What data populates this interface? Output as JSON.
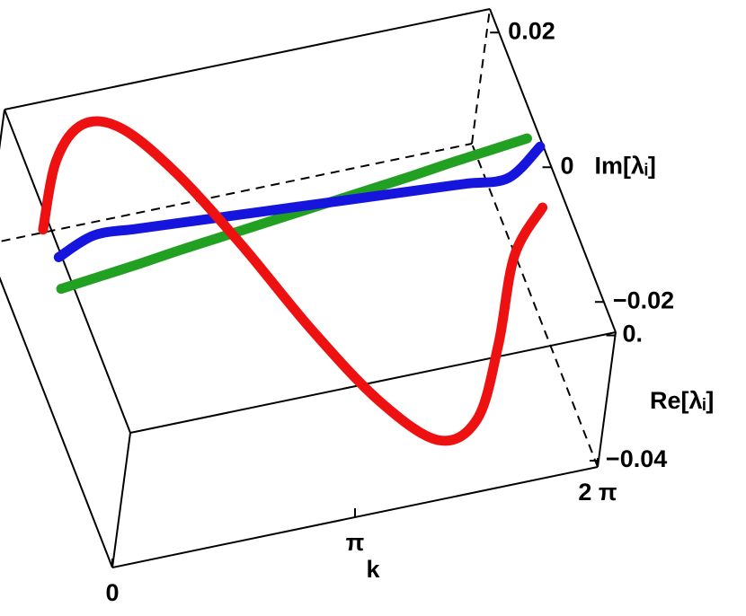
{
  "chart_data": {
    "type": "line3d",
    "xlabel": "k",
    "ylabel": "Re[λᵢ]",
    "zlabel": "Im[λᵢ]",
    "xlim": [
      0,
      6.2832
    ],
    "ylim": [
      -0.042,
      0.001
    ],
    "zlim": [
      -0.0245,
      0.0235
    ],
    "xticks": [
      0,
      {
        "value": 3.1416,
        "label": "π"
      },
      {
        "value": 6.2832,
        "label": "2 π"
      }
    ],
    "yticks": [
      {
        "value": 0,
        "label": "0."
      },
      {
        "value": -0.04,
        "label": "−0.04"
      }
    ],
    "zticks": [
      0.02,
      0,
      {
        "value": -0.02,
        "label": "−0.02"
      }
    ],
    "x": [
      0,
      0.5236,
      1.0472,
      1.5708,
      2.0944,
      2.618,
      3.1416,
      3.6652,
      4.1888,
      4.7124,
      5.236,
      5.7596,
      6.2832
    ],
    "series": [
      {
        "color": "#22a022",
        "y": [
          -0.007,
          -0.007,
          -0.007,
          -0.007,
          -0.007,
          -0.007,
          -0.007,
          -0.007,
          -0.007,
          -0.007,
          -0.007,
          -0.007,
          -0.007
        ],
        "z": [
          0.0006,
          0.0012,
          0.0018,
          0.0025,
          0.0031,
          0.0037,
          0.0043,
          0.0049,
          0.0055,
          0.0061,
          0.0068,
          0.0074,
          0.008
        ]
      },
      {
        "color": "#1515dd",
        "y": [
          -0.001,
          -0.001,
          -0.001,
          -0.001,
          -0.001,
          -0.001,
          -0.001,
          -0.001,
          -0.001,
          -0.001,
          -0.001,
          -0.001,
          -0.001
        ],
        "z": [
          0.0025,
          0.0045,
          0.0042,
          0.0038,
          0.0034,
          0.003,
          0.0026,
          0.0022,
          0.0018,
          0.0014,
          0.001,
          0.0006,
          0.004
        ]
      },
      {
        "color": "#ee1111",
        "y": [
          -0.004,
          -0.006,
          -0.008,
          -0.012,
          -0.016,
          -0.02,
          -0.024,
          -0.026,
          -0.026,
          -0.024,
          -0.02,
          -0.016,
          -0.014
        ],
        "z": [
          0.008,
          0.018,
          0.023,
          0.023,
          0.017,
          0.007,
          -0.005,
          -0.016,
          -0.023,
          -0.022,
          -0.014,
          -0.004,
          0.001
        ]
      }
    ]
  }
}
